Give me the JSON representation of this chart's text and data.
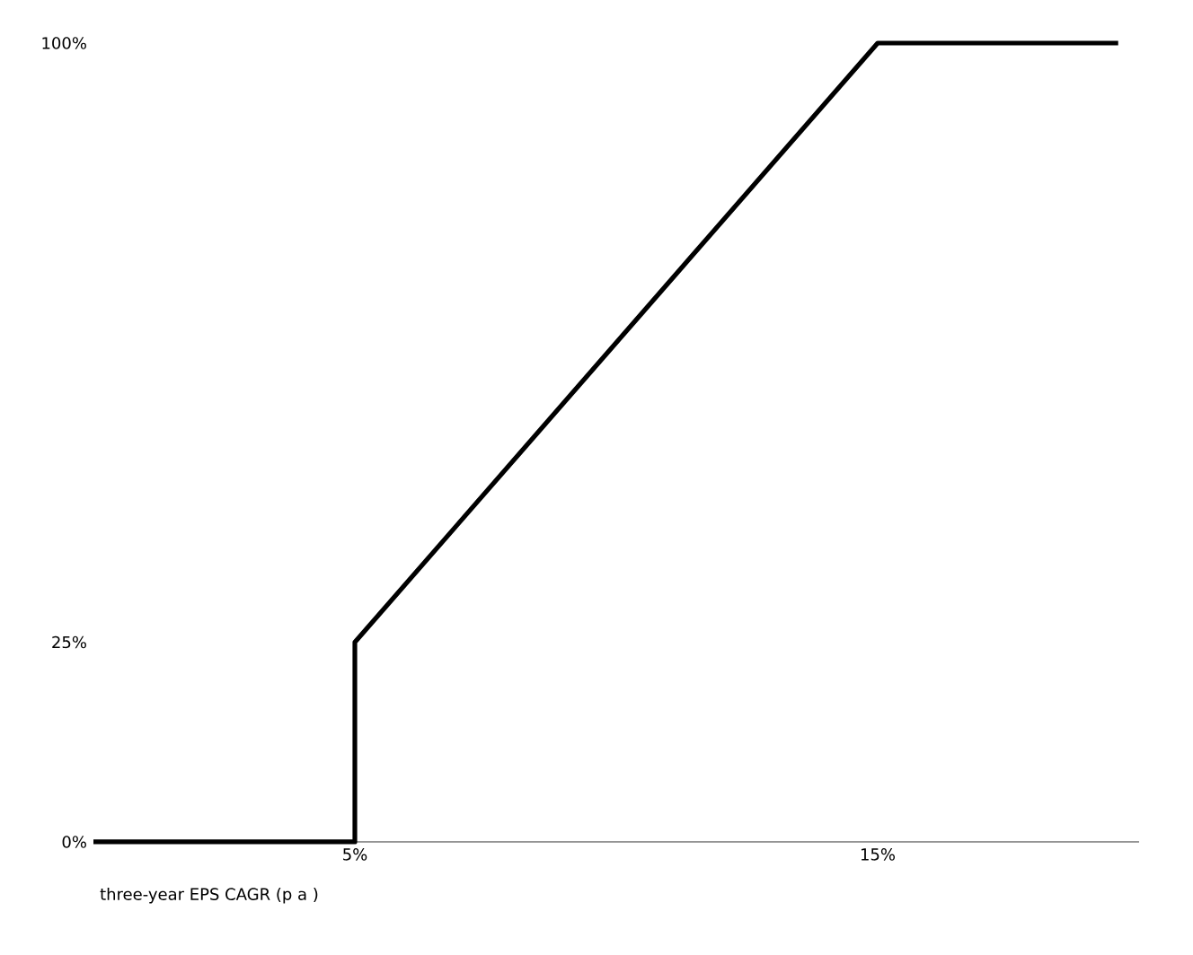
{
  "chart_data": {
    "type": "line",
    "xlabel": "three-year EPS CAGR (p a )",
    "x": [
      0,
      5,
      5,
      15,
      19.6
    ],
    "series": [
      {
        "color": "#000000",
        "values": [
          0,
          0,
          25,
          100,
          100
        ]
      }
    ],
    "xlim": [
      0,
      20
    ],
    "ylim": [
      0,
      100
    ],
    "xticks": [
      {
        "value": 5,
        "label": "5%"
      },
      {
        "value": 15,
        "label": "15%"
      }
    ],
    "yticks": [
      {
        "value": 0,
        "label": "0%"
      },
      {
        "value": 25,
        "label": "25%"
      },
      {
        "value": 100,
        "label": "100%"
      }
    ],
    "grid": false,
    "marker": "none",
    "line_style": "solid"
  }
}
